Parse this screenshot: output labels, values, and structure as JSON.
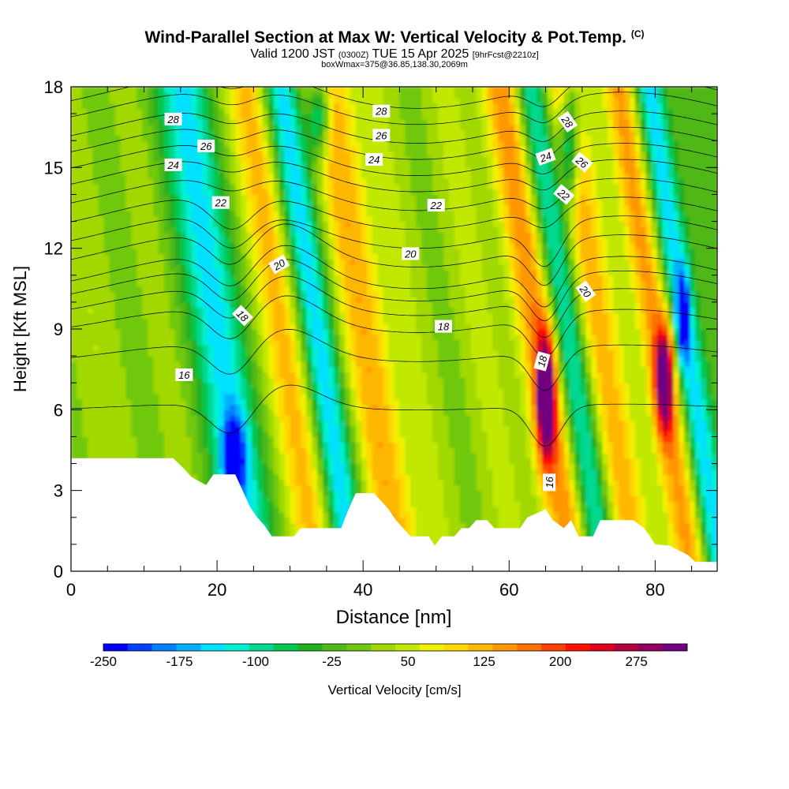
{
  "header": {
    "title": "Wind-Parallel Section at Max W: Vertical Velocity & Pot.Temp.",
    "title_mark": "(C)",
    "valid_prefix": "Valid 1200 JST",
    "valid_utc": "(0300Z)",
    "valid_date": "TUE 15 Apr 2025",
    "forecast": "[9hrFcst@2210z]",
    "box_info": "boxWmax=375@36.85,138.30,2069m"
  },
  "chart_data": {
    "type": "heatmap",
    "xlabel": "Distance [nm]",
    "ylabel": "Height [Kft MSL]",
    "xlim": [
      0,
      88.5
    ],
    "ylim": [
      0,
      18
    ],
    "x_ticks": [
      "0",
      "20",
      "40",
      "60",
      "80"
    ],
    "y_ticks": [
      "0",
      "3",
      "6",
      "9",
      "12",
      "15",
      "18"
    ],
    "colorbar": {
      "label": "Vertical Velocity [cm/s]",
      "tick_labels": [
        "-250",
        "-175",
        "-100",
        "-25",
        "50",
        "125",
        "200",
        "275"
      ],
      "min": -250,
      "max": 325,
      "step": 25,
      "colors": [
        "#0000ff",
        "#0040ff",
        "#0080ff",
        "#00b0ff",
        "#00e0ff",
        "#00f0d0",
        "#00d890",
        "#00c850",
        "#20b020",
        "#50b818",
        "#70c810",
        "#a0d800",
        "#c0e800",
        "#f0f000",
        "#ffd800",
        "#ffb800",
        "#ff9800",
        "#ff7000",
        "#ff4000",
        "#ff1000",
        "#e00020",
        "#b00040",
        "#900060",
        "#700080"
      ]
    },
    "background_velocity": 0,
    "velocity_bands": [
      {
        "x": 3,
        "w": 4,
        "v": 50
      },
      {
        "x": 12.5,
        "w": 3,
        "v": 40
      },
      {
        "x": 20,
        "w": 3.5,
        "v": -140
      },
      {
        "x": 29,
        "w": 3.5,
        "v": 140
      },
      {
        "x": 33.5,
        "w": 2.5,
        "v": -170
      },
      {
        "x": 40,
        "w": 3.5,
        "v": 150
      },
      {
        "x": 47,
        "w": 3,
        "v": 50
      },
      {
        "x": 56,
        "w": 3.5,
        "v": 60
      },
      {
        "x": 64,
        "w": 3,
        "v": 180
      },
      {
        "x": 68,
        "w": 2.5,
        "v": -170
      },
      {
        "x": 72,
        "w": 3.5,
        "v": 150
      },
      {
        "x": 80,
        "w": 2.5,
        "v": 160
      },
      {
        "x": 84,
        "w": 2,
        "v": -150
      }
    ],
    "velocity_cores": [
      {
        "x": 22.3,
        "y": 4.2,
        "v": -210,
        "w": 1.5,
        "h": 1.5
      },
      {
        "x": 65,
        "y": 6.5,
        "v": 300,
        "w": 1.3,
        "h": 2.3
      },
      {
        "x": 81.3,
        "y": 7.2,
        "v": 260,
        "w": 1.3,
        "h": 2.0
      },
      {
        "x": 83.8,
        "y": 9.5,
        "v": -190,
        "w": 0.9,
        "h": 1.6
      },
      {
        "x": 68.3,
        "y": 16.0,
        "v": -200,
        "w": 1.3,
        "h": 2.2
      },
      {
        "x": 34,
        "y": 17.0,
        "v": -180,
        "w": 1.5,
        "h": 1.5
      }
    ],
    "terrain": [
      [
        0,
        4.2
      ],
      [
        14,
        4.2
      ],
      [
        15.5,
        3.8
      ],
      [
        16.5,
        3.5
      ],
      [
        18.5,
        3.2
      ],
      [
        19.5,
        3.6
      ],
      [
        22.5,
        3.6
      ],
      [
        23.5,
        3.0
      ],
      [
        24.5,
        2.4
      ],
      [
        25.5,
        2.0
      ],
      [
        26.5,
        1.7
      ],
      [
        27.5,
        1.3
      ],
      [
        30.5,
        1.3
      ],
      [
        31.5,
        1.6
      ],
      [
        37,
        1.6
      ],
      [
        38,
        2.3
      ],
      [
        39,
        2.9
      ],
      [
        41.5,
        2.9
      ],
      [
        42.5,
        2.6
      ],
      [
        43.5,
        2.3
      ],
      [
        44.5,
        1.9
      ],
      [
        45.5,
        1.6
      ],
      [
        46.5,
        1.3
      ],
      [
        49,
        1.3
      ],
      [
        49.8,
        0.95
      ],
      [
        50.8,
        1.3
      ],
      [
        52.5,
        1.3
      ],
      [
        53.5,
        1.6
      ],
      [
        54.5,
        1.6
      ],
      [
        55.5,
        1.9
      ],
      [
        57,
        1.9
      ],
      [
        58,
        1.6
      ],
      [
        61.5,
        1.6
      ],
      [
        62.5,
        2.0
      ],
      [
        65,
        2.3
      ],
      [
        66,
        1.9
      ],
      [
        67.5,
        1.6
      ],
      [
        68.5,
        1.9
      ],
      [
        69.5,
        1.3
      ],
      [
        71.5,
        1.3
      ],
      [
        72.5,
        1.9
      ],
      [
        77,
        1.9
      ],
      [
        78.5,
        1.6
      ],
      [
        80,
        1.0
      ],
      [
        82,
        0.95
      ],
      [
        84.5,
        0.6
      ],
      [
        85.5,
        0.35
      ],
      [
        88.5,
        0.35
      ]
    ],
    "isentropes": [
      {
        "value": 14,
        "label": "",
        "base": 6.1
      },
      {
        "value": 15,
        "label": "",
        "base": 8.1
      },
      {
        "value": 16,
        "label": "16",
        "base": 9.3
      },
      {
        "value": 17,
        "label": "",
        "base": 10.0
      },
      {
        "value": 18,
        "label": "18",
        "base": 10.6
      },
      {
        "value": 19,
        "label": "",
        "base": 11.1
      },
      {
        "value": 20,
        "label": "20",
        "base": 11.9
      },
      {
        "value": 21,
        "label": "",
        "base": 12.6
      },
      {
        "value": 22,
        "label": "22",
        "base": 13.3
      },
      {
        "value": 23,
        "label": "",
        "base": 14.0
      },
      {
        "value": 24,
        "label": "24",
        "base": 14.7
      },
      {
        "value": 25,
        "label": "",
        "base": 15.3
      },
      {
        "value": 26,
        "label": "26",
        "base": 15.9
      },
      {
        "value": 27,
        "label": "",
        "base": 16.5
      },
      {
        "value": 28,
        "label": "28",
        "base": 17.2
      },
      {
        "value": 29,
        "label": "",
        "base": 17.8
      }
    ],
    "contour_labels": [
      {
        "text": "28",
        "x": 14,
        "y": 16.8,
        "angle": 0
      },
      {
        "text": "26",
        "x": 18.5,
        "y": 15.8,
        "angle": 0
      },
      {
        "text": "24",
        "x": 14,
        "y": 15.1,
        "angle": 0
      },
      {
        "text": "22",
        "x": 20.5,
        "y": 13.7,
        "angle": 0
      },
      {
        "text": "20",
        "x": 28.5,
        "y": 11.4,
        "angle": -30
      },
      {
        "text": "18",
        "x": 23.5,
        "y": 9.5,
        "angle": 45
      },
      {
        "text": "16",
        "x": 15.5,
        "y": 7.3,
        "angle": 0
      },
      {
        "text": "28",
        "x": 42.5,
        "y": 17.1,
        "angle": 0
      },
      {
        "text": "26",
        "x": 42.5,
        "y": 16.2,
        "angle": 0
      },
      {
        "text": "24",
        "x": 41.5,
        "y": 15.3,
        "angle": 0
      },
      {
        "text": "22",
        "x": 50,
        "y": 13.6,
        "angle": 0
      },
      {
        "text": "20",
        "x": 46.5,
        "y": 11.8,
        "angle": 0
      },
      {
        "text": "18",
        "x": 51,
        "y": 9.1,
        "angle": 0
      },
      {
        "text": "18",
        "x": 64.5,
        "y": 7.8,
        "angle": -75
      },
      {
        "text": "16",
        "x": 65.5,
        "y": 3.3,
        "angle": -90
      },
      {
        "text": "28",
        "x": 68,
        "y": 16.7,
        "angle": 55
      },
      {
        "text": "26",
        "x": 70,
        "y": 15.2,
        "angle": 40
      },
      {
        "text": "24",
        "x": 65,
        "y": 15.4,
        "angle": -20
      },
      {
        "text": "22",
        "x": 67.5,
        "y": 14.0,
        "angle": 40
      },
      {
        "text": "20",
        "x": 70.5,
        "y": 10.4,
        "angle": 55
      }
    ]
  }
}
